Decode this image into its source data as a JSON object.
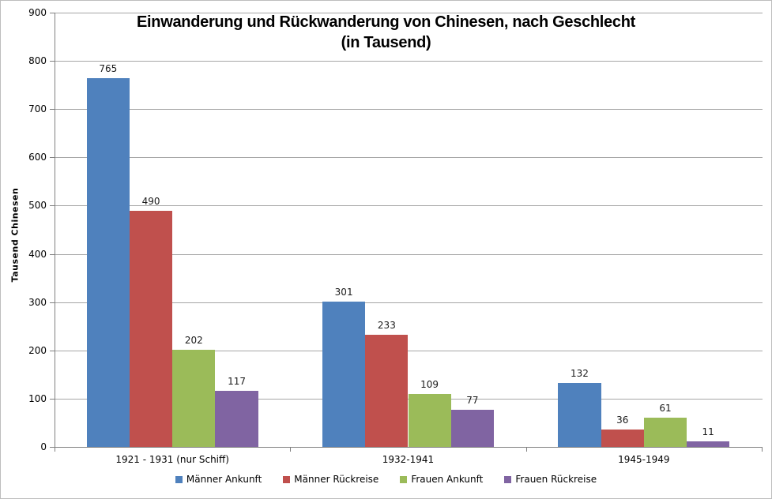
{
  "title": {
    "line1": "Einwanderung und Rückwanderung von Chinesen, nach Geschlecht",
    "line2": "(in Tausend)"
  },
  "chart_data": {
    "type": "bar",
    "title": "Einwanderung und Rückwanderung von Chinesen, nach Geschlecht (in Tausend)",
    "ylabel": "Tausend Chinesen",
    "xlabel": "",
    "ylim": [
      0,
      900
    ],
    "ytick_step": 100,
    "grid": true,
    "legend_position": "bottom",
    "categories": [
      "1921 - 1931 (nur Schiff)",
      "1932-1941",
      "1945-1949"
    ],
    "series": [
      {
        "name": "Männer Ankunft",
        "color": "#4F81BD",
        "values": [
          765,
          301,
          132
        ]
      },
      {
        "name": "Männer Rückreise",
        "color": "#C0504D",
        "values": [
          490,
          233,
          36
        ]
      },
      {
        "name": "Frauen Ankunft",
        "color": "#9BBB59",
        "values": [
          202,
          109,
          61
        ]
      },
      {
        "name": "Frauen Rückreise",
        "color": "#8064A2",
        "values": [
          117,
          77,
          11
        ]
      }
    ],
    "colors": {
      "gridline": "#A6A6A6",
      "axis": "#808080",
      "data_label": "#1A1A1A",
      "background": "#FFFFFF"
    }
  }
}
